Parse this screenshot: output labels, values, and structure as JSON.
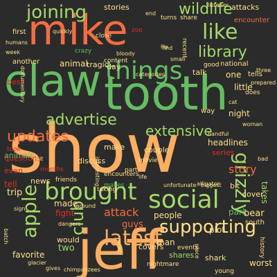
{
  "palette": {
    "background": "#2b2b2b",
    "green": "#66bd63",
    "light_green": "#a6d96a",
    "orange": "#f46d43",
    "light_orange": "#fdae61",
    "peach": "#fee08b",
    "red": "#d73027",
    "dark_green": "#1a9850"
  },
  "words": [
    {
      "text": "show",
      "size": 10,
      "color": "light_orange",
      "rot": 0
    },
    {
      "text": "mike",
      "size": 9,
      "color": "orange",
      "rot": 0
    },
    {
      "text": "jeff",
      "size": 9,
      "color": "light_orange",
      "rot": 0
    },
    {
      "text": "tooth",
      "size": 8,
      "color": "green",
      "rot": 0
    },
    {
      "text": "claw",
      "size": 8,
      "color": "green",
      "rot": 0
    },
    {
      "text": "things",
      "size": 6,
      "color": "green",
      "rot": 0
    },
    {
      "text": "social",
      "size": 6,
      "color": "light_green",
      "rot": 0
    },
    {
      "text": "brought",
      "size": 6,
      "color": "light_green",
      "rot": 0
    },
    {
      "text": "like",
      "size": 5,
      "color": "light_green",
      "rot": 0
    },
    {
      "text": "joining",
      "size": 5,
      "color": "light_green",
      "rot": 0
    },
    {
      "text": "latest",
      "size": 5,
      "color": "light_orange",
      "rot": 0
    },
    {
      "text": "supporting",
      "size": 5,
      "color": "peach",
      "rot": 0
    },
    {
      "text": "apple",
      "size": 5,
      "color": "light_green",
      "rot": 270
    },
    {
      "text": "grizzly",
      "size": 5,
      "color": "light_green",
      "rot": 90
    },
    {
      "text": "club",
      "size": 5,
      "color": "light_green",
      "rot": 270
    },
    {
      "text": "wildlife",
      "size": 4,
      "color": "light_green",
      "rot": 0
    },
    {
      "text": "library",
      "size": 4,
      "color": "light_green",
      "rot": 0
    },
    {
      "text": "advertise",
      "size": 4,
      "color": "light_green",
      "rot": 0
    },
    {
      "text": "updates",
      "size": 4,
      "color": "orange",
      "rot": 0
    },
    {
      "text": "extensive",
      "size": 4,
      "color": "light_green",
      "rot": 0
    },
    {
      "text": "story",
      "size": 3,
      "color": "orange",
      "rot": 0
    },
    {
      "text": "attack",
      "size": 3,
      "color": "orange",
      "rot": 0
    },
    {
      "text": "stories",
      "size": 2,
      "color": "peach",
      "rot": 0
    },
    {
      "text": "animal",
      "size": 2,
      "color": "peach",
      "rot": 0
    },
    {
      "text": "one",
      "size": 2,
      "color": "peach",
      "rot": 0
    },
    {
      "text": "attacks",
      "size": 2,
      "color": "peach",
      "rot": 0
    },
    {
      "text": "encounter",
      "size": 2,
      "color": "orange",
      "rot": 0
    },
    {
      "text": "little",
      "size": 2,
      "color": "peach",
      "rot": 0
    },
    {
      "text": "talk",
      "size": 2,
      "color": "peach",
      "rot": 0
    },
    {
      "text": "couple",
      "size": 2,
      "color": "peach",
      "rot": 0
    },
    {
      "text": "headlines",
      "size": 2,
      "color": "peach",
      "rot": 0
    },
    {
      "text": "series",
      "size": 2,
      "color": "red",
      "rot": 0
    },
    {
      "text": "bit",
      "size": 2,
      "color": "peach",
      "rot": 0
    },
    {
      "text": "cover",
      "size": 2,
      "color": "peach",
      "rot": 0
    },
    {
      "text": "takes",
      "size": 2,
      "color": "light_green",
      "rot": 90
    },
    {
      "text": "bear",
      "size": 2,
      "color": "peach",
      "rot": 0
    },
    {
      "text": "south",
      "size": 2,
      "color": "peach",
      "rot": 0
    },
    {
      "text": "park",
      "size": 2,
      "color": "green",
      "rot": 0
    },
    {
      "text": "guys",
      "size": 2,
      "color": "orange",
      "rot": 0
    },
    {
      "text": "people",
      "size": 2,
      "color": "peach",
      "rot": 0
    },
    {
      "text": "man",
      "size": 2,
      "color": "peach",
      "rot": 0
    },
    {
      "text": "plot",
      "size": 2,
      "color": "peach",
      "rot": 0
    },
    {
      "text": "covers",
      "size": 2,
      "color": "peach",
      "rot": 0
    },
    {
      "text": "shares",
      "size": 2,
      "color": "light_green",
      "rot": 0
    },
    {
      "text": "shark",
      "size": 2,
      "color": "peach",
      "rot": 0
    },
    {
      "text": "worst",
      "size": 2,
      "color": "peach",
      "rot": 0
    },
    {
      "text": "two",
      "size": 2,
      "color": "light_green",
      "rot": 0
    },
    {
      "text": "favorite",
      "size": 2,
      "color": "peach",
      "rot": 0
    },
    {
      "text": "would",
      "size": 2,
      "color": "peach",
      "rot": 0
    },
    {
      "text": "made",
      "size": 2,
      "color": "peach",
      "rot": 0
    },
    {
      "text": "fight",
      "size": 2,
      "color": "red",
      "rot": 0
    },
    {
      "text": "trip",
      "size": 2,
      "color": "peach",
      "rot": 0
    },
    {
      "text": "tell",
      "size": 2,
      "color": "red",
      "rot": 0
    },
    {
      "text": "news",
      "size": 2,
      "color": "peach",
      "rot": 0
    },
    {
      "text": "even",
      "size": 2,
      "color": "red",
      "rot": 0
    },
    {
      "text": "make",
      "size": 2,
      "color": "peach",
      "rot": 0
    },
    {
      "text": "way",
      "size": 2,
      "color": "peach",
      "rot": 0
    },
    {
      "text": "day",
      "size": 2,
      "color": "peach",
      "rot": 0
    },
    {
      "text": "tragic",
      "size": 2,
      "color": "peach",
      "rot": 0
    },
    {
      "text": "another",
      "size": 2,
      "color": "peach",
      "rot": 0
    },
    {
      "text": "first",
      "size": 2,
      "color": "peach",
      "rot": 0
    },
    {
      "text": "best",
      "size": 2,
      "color": "red",
      "rot": 0
    },
    {
      "text": "national",
      "size": 2,
      "color": "peach",
      "rot": 0
    },
    {
      "text": "tells",
      "size": 2,
      "color": "peach",
      "rot": 0
    },
    {
      "text": "prepared",
      "size": 1,
      "color": "peach",
      "rot": 0
    },
    {
      "text": "three",
      "size": 1,
      "color": "peach",
      "rot": 0
    },
    {
      "text": "does",
      "size": 1,
      "color": "peach",
      "rot": 0
    },
    {
      "text": "night",
      "size": 2,
      "color": "peach",
      "rot": 0
    },
    {
      "text": "woman",
      "size": 1,
      "color": "peach",
      "rot": 0
    },
    {
      "text": "movie",
      "size": 1,
      "color": "peach",
      "rot": 0
    },
    {
      "text": "discuss",
      "size": 2,
      "color": "peach",
      "rot": 0
    },
    {
      "text": "questions",
      "size": 2,
      "color": "red",
      "rot": 0
    },
    {
      "text": "animals",
      "size": 2,
      "color": "green",
      "rot": 0
    },
    {
      "text": "recent",
      "size": 1,
      "color": "peach",
      "rot": 90
    },
    {
      "text": "turns",
      "size": 1,
      "color": "peach",
      "rot": 0
    },
    {
      "text": "share",
      "size": 1,
      "color": "peach",
      "rot": 0
    },
    {
      "text": "find",
      "size": 1,
      "color": "peach",
      "rot": 0
    },
    {
      "text": "good",
      "size": 1,
      "color": "peach",
      "rot": 0
    },
    {
      "text": "close",
      "size": 1,
      "color": "peach",
      "rot": 0
    },
    {
      "text": "quickly",
      "size": 1,
      "color": "peach",
      "rot": 0
    },
    {
      "text": "humans",
      "size": 1,
      "color": "peach",
      "rot": 0
    },
    {
      "text": "week",
      "size": 1,
      "color": "peach",
      "rot": 0
    },
    {
      "text": "crazy",
      "size": 1,
      "color": "green",
      "rot": 0
    },
    {
      "text": "content",
      "size": 1,
      "color": "peach",
      "rot": 0
    },
    {
      "text": "small",
      "size": 1,
      "color": "peach",
      "rot": 0
    },
    {
      "text": "encounters",
      "size": 1,
      "color": "peach",
      "rot": 0
    },
    {
      "text": "makes",
      "size": 1,
      "color": "green",
      "rot": 0
    },
    {
      "text": "part",
      "size": 1,
      "color": "peach",
      "rot": 0
    },
    {
      "text": "life",
      "size": 1,
      "color": "peach",
      "rot": 0
    },
    {
      "text": "months",
      "size": 1,
      "color": "red",
      "rot": 0
    },
    {
      "text": "friends",
      "size": 1,
      "color": "peach",
      "rot": 0
    },
    {
      "text": "taking",
      "size": 1,
      "color": "peach",
      "rot": 0
    },
    {
      "text": "dangers",
      "size": 1,
      "color": "peach",
      "rot": 0
    },
    {
      "text": "around",
      "size": 1,
      "color": "peach",
      "rot": 0
    },
    {
      "text": "biggest",
      "size": 1,
      "color": "peach",
      "rot": 0
    },
    {
      "text": "unfortunate",
      "size": 1,
      "color": "peach",
      "rot": 0
    },
    {
      "text": "alligator",
      "size": 1,
      "color": "peach",
      "rot": 0
    },
    {
      "text": "handful",
      "size": 1,
      "color": "peach",
      "rot": 0
    },
    {
      "text": "nightmare",
      "size": 1,
      "color": "peach",
      "rot": 0
    },
    {
      "text": "events",
      "size": 1,
      "color": "peach",
      "rot": 0
    },
    {
      "text": "young",
      "size": 1,
      "color": "peach",
      "rot": 0
    },
    {
      "text": "history",
      "size": 1,
      "color": "peach",
      "rot": 90
    },
    {
      "text": "gives",
      "size": 1,
      "color": "peach",
      "rot": 0
    },
    {
      "text": "chimpanzees",
      "size": 1,
      "color": "peach",
      "rot": 0
    },
    {
      "text": "end",
      "size": 1,
      "color": "peach",
      "rot": 0
    },
    {
      "text": "zoo",
      "size": 1,
      "color": "red",
      "rot": 0
    },
    {
      "text": "listener",
      "size": 1,
      "color": "peach",
      "rot": 0
    },
    {
      "text": "documentary",
      "size": 1,
      "color": "peach",
      "rot": 90
    },
    {
      "text": "bloody",
      "size": 1,
      "color": "peach",
      "rot": 0
    },
    {
      "text": "categories",
      "size": 1,
      "color": "peach",
      "rot": 0
    },
    {
      "text": "sign",
      "size": 1,
      "color": "peach",
      "rot": 0
    },
    {
      "text": "batch",
      "size": 1,
      "color": "peach",
      "rot": 90
    },
    {
      "text": "bad",
      "size": 1,
      "color": "peach",
      "rot": 0
    },
    {
      "text": "flip",
      "size": 1,
      "color": "peach",
      "rot": 0
    },
    {
      "text": "cat",
      "size": 1,
      "color": "peach",
      "rot": 0
    },
    {
      "text": "hit",
      "size": 1,
      "color": "peach",
      "rot": 0
    },
    {
      "text": "took",
      "size": 1,
      "color": "red",
      "rot": 0
    },
    {
      "text": "wrap",
      "size": 1,
      "color": "peach",
      "rot": 90
    },
    {
      "text": "place",
      "size": 1,
      "color": "peach",
      "rot": 90
    },
    {
      "text": "interesting",
      "size": 1,
      "color": "peach",
      "rot": 90
    },
    {
      "text": "glacier",
      "size": 1,
      "color": "peach",
      "rot": 0
    }
  ]
}
